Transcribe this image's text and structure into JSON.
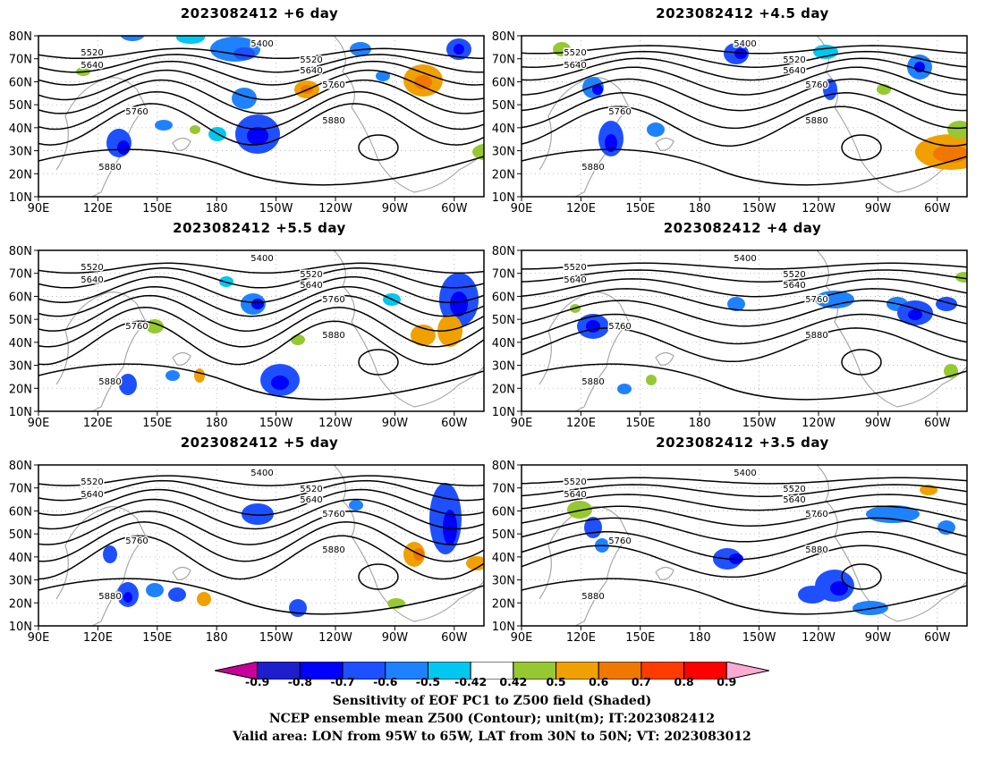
{
  "panels": [
    {
      "title": "2023082412 +6 day"
    },
    {
      "title": "2023082412 +4.5 day"
    },
    {
      "title": "2023082412 +5.5 day"
    },
    {
      "title": "2023082412 +4 day"
    },
    {
      "title": "2023082412 +5 day"
    },
    {
      "title": "2023082412 +3.5 day"
    }
  ],
  "lat_ticks": [
    "80N",
    "70N",
    "60N",
    "50N",
    "40N",
    "30N",
    "20N",
    "10N"
  ],
  "lon_ticks": [
    "90E",
    "120E",
    "150E",
    "180",
    "150W",
    "120W",
    "90W",
    "60W"
  ],
  "contour_labels": [
    "5400",
    "5520",
    "5640",
    "5760",
    "5880"
  ],
  "colorbar": {
    "labels": [
      "-0.9",
      "-0.8",
      "-0.7",
      "-0.6",
      "-0.5",
      "-0.42",
      "0.42",
      "0.5",
      "0.6",
      "0.7",
      "0.8",
      "0.9"
    ],
    "colors": [
      "#c8009a",
      "#1e1ecc",
      "#0000ff",
      "#1e50ff",
      "#1e82ff",
      "#00c8f0",
      "#ffffff",
      "#96c832",
      "#f0a000",
      "#f07800",
      "#ff3c00",
      "#ff0000",
      "#ffaad2"
    ]
  },
  "caption": {
    "line1": "Sensitivity of EOF PC1 to Z500 field (Shaded)",
    "line2": "NCEP ensemble mean Z500 (Contour); unit(m); IT:2023082412",
    "line3": "Valid area: LON from 95W to 65W, LAT from 30N to 50N; VT: 2023083012"
  }
}
